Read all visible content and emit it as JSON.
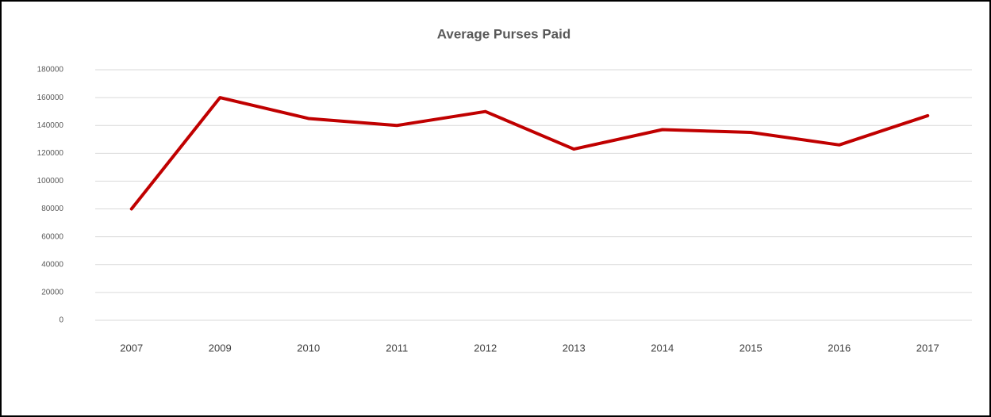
{
  "chart_data": {
    "type": "line",
    "title": "Average Purses Paid",
    "categories": [
      "2007",
      "2009",
      "2010",
      "2011",
      "2012",
      "2013",
      "2014",
      "2015",
      "2016",
      "2017"
    ],
    "series": [
      {
        "name": "Average Purses Paid",
        "color": "#c00000",
        "values": [
          80000,
          160000,
          145000,
          140000,
          150000,
          123000,
          137000,
          135000,
          126000,
          147000
        ]
      }
    ],
    "ylim": [
      0,
      180000
    ],
    "yticks": [
      0,
      20000,
      40000,
      60000,
      80000,
      100000,
      120000,
      140000,
      160000,
      180000
    ],
    "grid": true
  }
}
